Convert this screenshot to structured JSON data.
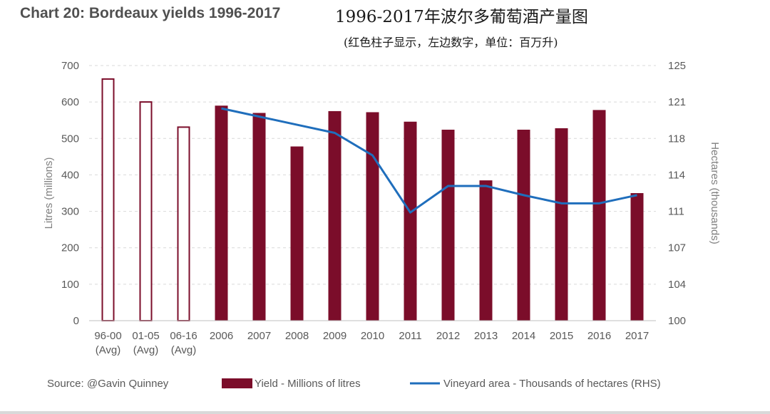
{
  "header": {
    "title": "Chart 20: Bordeaux yields 1996-2017",
    "cn_title": "1996-2017年波尔多葡萄酒产量图",
    "cn_subtitle": "(红色柱子显示，左边数字，单位：百万升)"
  },
  "colors": {
    "bar": "#7b0d2a",
    "line": "#1f6ebc",
    "grid": "#d9d9d9",
    "axis": "#bfbfbf"
  },
  "chart_data": {
    "type": "bar",
    "categories": [
      "96-00\n(Avg)",
      "01-05\n(Avg)",
      "06-16\n(Avg)",
      "2006",
      "2007",
      "2008",
      "2009",
      "2010",
      "2011",
      "2012",
      "2013",
      "2014",
      "2015",
      "2016",
      "2017"
    ],
    "series": [
      {
        "name": "Yield - Millions of litres",
        "type": "bar",
        "axis": "left",
        "values": [
          665,
          602,
          533,
          590,
          570,
          478,
          575,
          572,
          546,
          524,
          385,
          524,
          528,
          578,
          350
        ],
        "hollow": [
          true,
          true,
          true,
          false,
          false,
          false,
          false,
          false,
          false,
          false,
          false,
          false,
          false,
          false,
          false
        ]
      },
      {
        "name": "Vineyard area - Thousands of hectares (RHS)",
        "type": "line",
        "axis": "right",
        "values": [
          null,
          null,
          null,
          120.8,
          120.0,
          119.2,
          118.4,
          116.2,
          110.6,
          113.2,
          113.2,
          112.3,
          111.5,
          111.5,
          112.3
        ]
      }
    ],
    "ylabel": "Litres (millions)",
    "ylim": [
      0,
      700
    ],
    "yticks": [
      0,
      100,
      200,
      300,
      400,
      500,
      600,
      700
    ],
    "y2label": "Hectares (thousands)",
    "y2lim": [
      100,
      125
    ],
    "y2ticks": [
      "100",
      "104",
      "107",
      "111",
      "114",
      "118",
      "121",
      "125"
    ],
    "grid": true,
    "legend_position": "bottom"
  },
  "footer": {
    "source": "Source: @Gavin Quinney"
  }
}
